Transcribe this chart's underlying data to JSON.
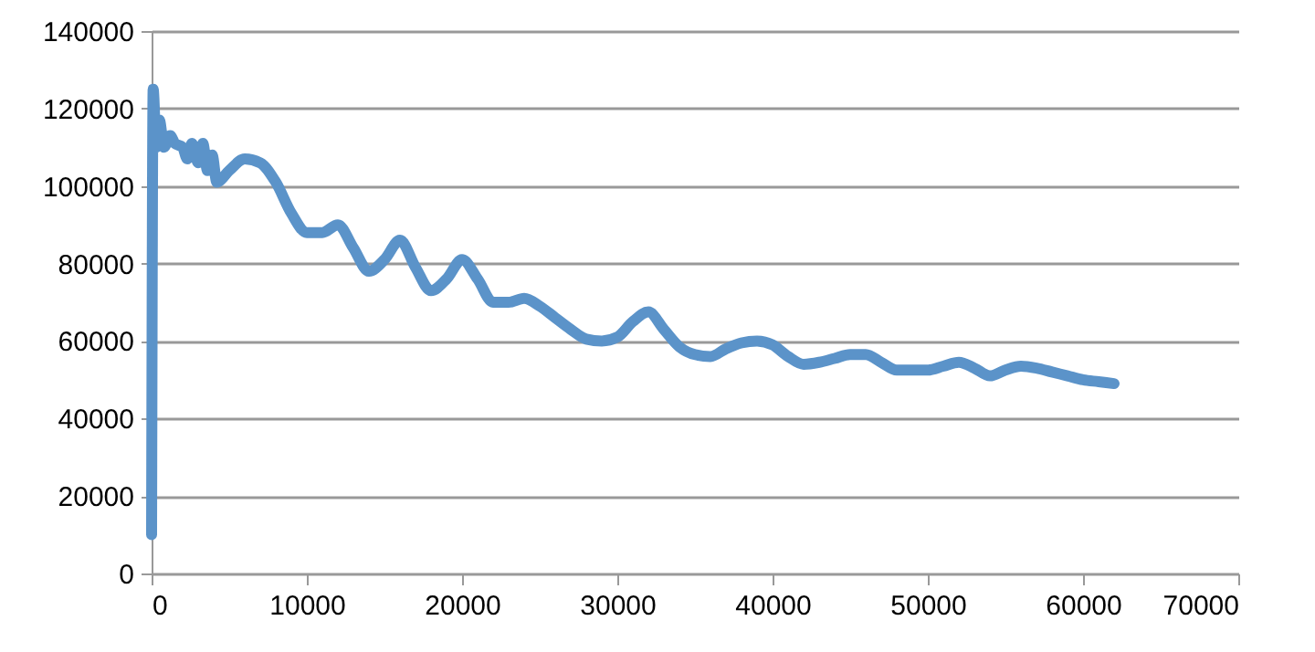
{
  "chart_data": {
    "type": "line",
    "xlim": [
      0,
      70000
    ],
    "xticks": [
      0,
      10000,
      20000,
      30000,
      40000,
      50000,
      60000,
      70000
    ],
    "ylim": [
      0,
      140000
    ],
    "yticks": [
      0,
      20000,
      40000,
      60000,
      80000,
      100000,
      120000,
      140000
    ],
    "grid": "y",
    "marker": "none",
    "line_style": "solid",
    "series": [
      {
        "color": "#5b93c9",
        "x": [
          0,
          100,
          300,
          500,
          800,
          1200,
          1500,
          2000,
          2300,
          2600,
          3000,
          3300,
          3600,
          3900,
          4200,
          5000,
          6000,
          7000,
          8000,
          9000,
          10000,
          11000,
          12000,
          13000,
          14000,
          15000,
          16000,
          17000,
          18000,
          19000,
          20000,
          21000,
          22000,
          23000,
          24000,
          25000,
          26000,
          27000,
          28000,
          29000,
          30000,
          31000,
          32000,
          33000,
          34000,
          35000,
          36000,
          37000,
          38000,
          39000,
          40000,
          41000,
          42000,
          43000,
          44000,
          45000,
          46000,
          47000,
          48000,
          49000,
          50000,
          51000,
          52000,
          53000,
          54000,
          55000,
          56000,
          57000,
          58000,
          59000,
          60000,
          61000,
          62000
        ],
        "values": [
          10000,
          125000,
          110000,
          117000,
          110000,
          113000,
          111000,
          110000,
          107000,
          111000,
          106000,
          111000,
          104000,
          108000,
          101000,
          104000,
          107000,
          106000,
          101000,
          93000,
          88000,
          88000,
          90000,
          84000,
          78000,
          81000,
          86000,
          79000,
          73000,
          76000,
          81000,
          76000,
          70000,
          70000,
          71000,
          69000,
          66000,
          63000,
          60500,
          60000,
          61000,
          65000,
          67500,
          63000,
          58500,
          56500,
          56000,
          58000,
          59500,
          60000,
          59000,
          56000,
          54000,
          54500,
          55500,
          56500,
          56500,
          54500,
          52500,
          52500,
          52500,
          53500,
          54500,
          53000,
          51000,
          52500,
          53500,
          53000,
          52000,
          51000,
          50000,
          49500,
          49000
        ]
      }
    ]
  }
}
